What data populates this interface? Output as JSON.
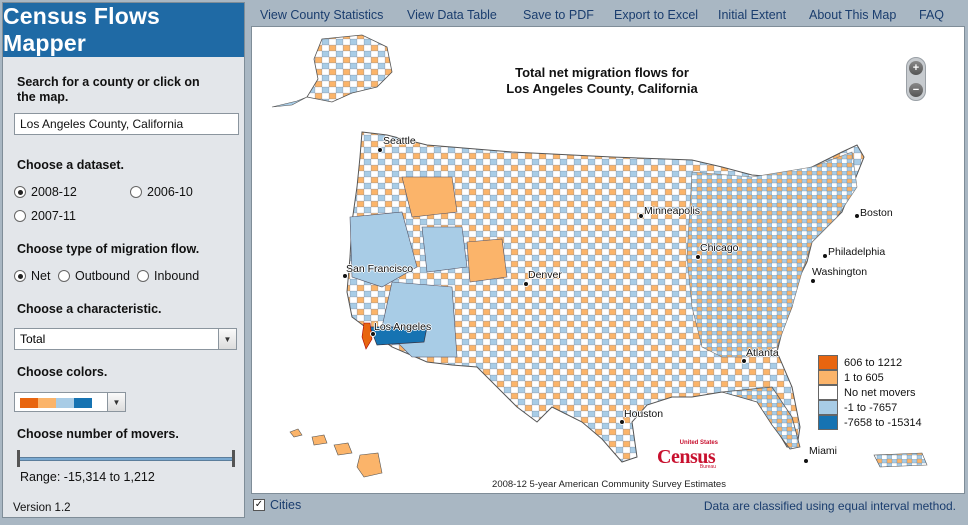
{
  "app": {
    "title": "Census Flows Mapper",
    "version": "Version 1.2"
  },
  "menu": [
    "View County Statistics",
    "View Data Table",
    "Save to PDF",
    "Export to Excel",
    "Initial Extent",
    "About This Map",
    "FAQ"
  ],
  "search": {
    "label": "Search for a county or click on the map.",
    "value": "Los Angeles County, California"
  },
  "dataset": {
    "label": "Choose a dataset.",
    "options": [
      "2008-12",
      "2006-10",
      "2007-11"
    ],
    "selected": "2008-12"
  },
  "flow_type": {
    "label": "Choose type of migration flow.",
    "options": [
      "Net",
      "Outbound",
      "Inbound"
    ],
    "selected": "Net"
  },
  "characteristic": {
    "label": "Choose a characteristic.",
    "value": "Total"
  },
  "colors": {
    "label": "Choose colors.",
    "swatches": [
      "#e8650f",
      "#fbb46a",
      "#a8cce6",
      "#1673b2"
    ]
  },
  "movers": {
    "label": "Choose number of movers.",
    "range_text": "Range: -15,314 to 1,212"
  },
  "map": {
    "title_line1": "Total net migration flows for",
    "title_line2": "Los Angeles County, California",
    "zoom_in": "+",
    "zoom_out": "−",
    "source": "2008-12 5-year American Community Survey Estimates",
    "cities": [
      "Seattle",
      "Minneapolis",
      "Boston",
      "Chicago",
      "Philadelphia",
      "Washington",
      "San Francisco",
      "Denver",
      "Los Angeles",
      "Atlanta",
      "Houston",
      "Miami"
    ],
    "logo": {
      "top": "United States",
      "main": "Census",
      "bottom": "Bureau"
    }
  },
  "legend": [
    {
      "label": "606 to 1212",
      "color": "#e8650f"
    },
    {
      "label": "1 to 605",
      "color": "#fbb46a"
    },
    {
      "label": "No net movers",
      "color": "#ffffff"
    },
    {
      "label": "-1 to -7657",
      "color": "#a8cce6"
    },
    {
      "label": "-7658 to -15314",
      "color": "#1673b2"
    }
  ],
  "bottom": {
    "cities_label": "Cities",
    "classify_note": "Data are classified using equal interval method."
  }
}
